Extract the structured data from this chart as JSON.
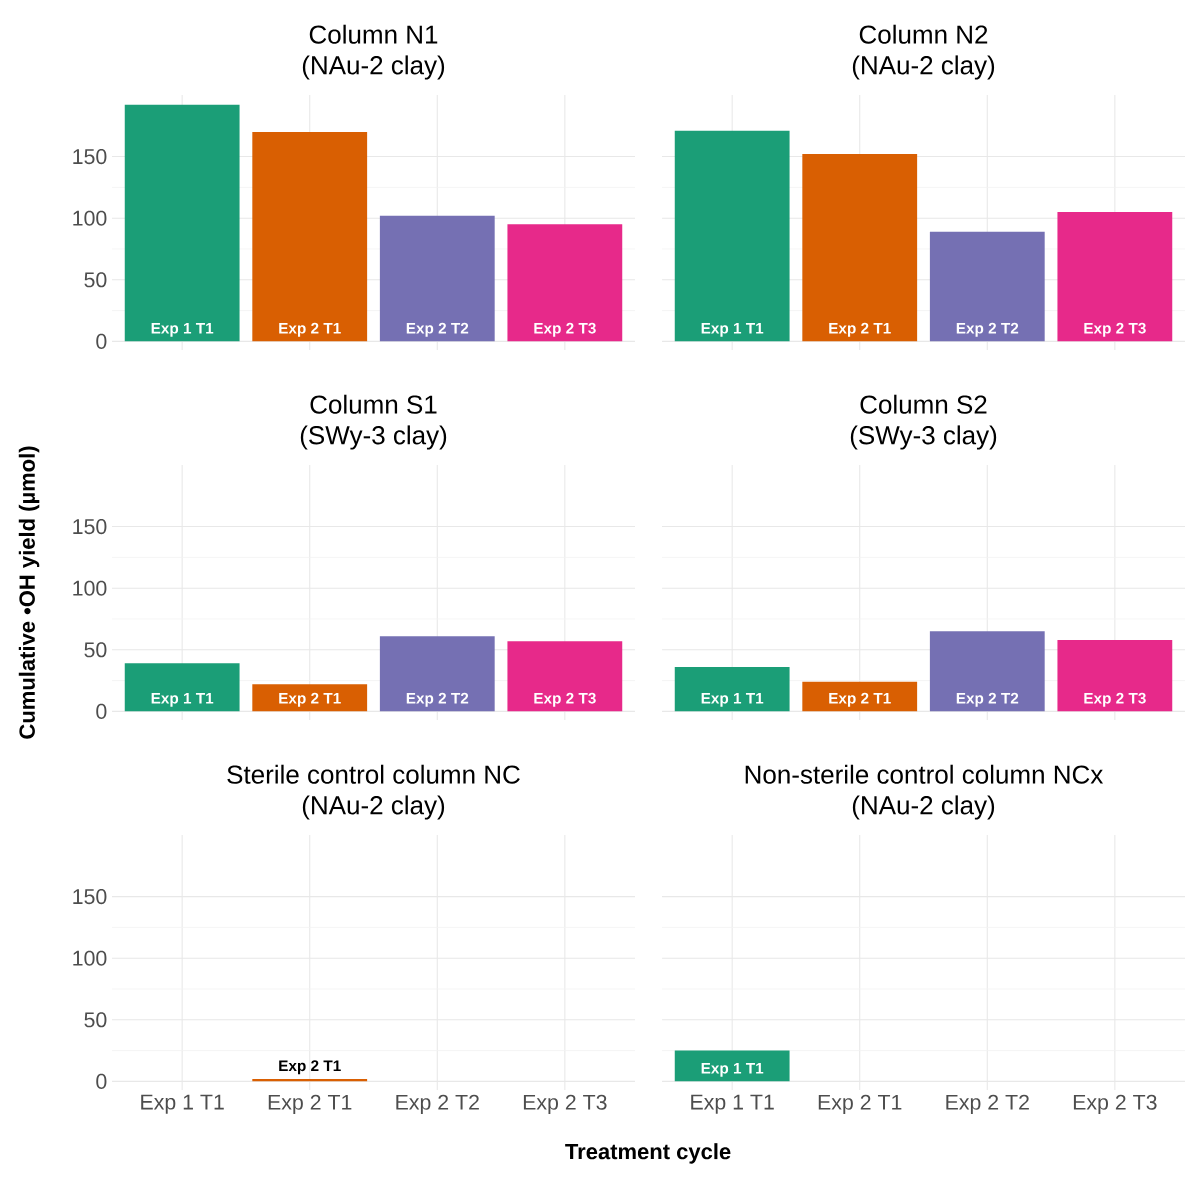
{
  "chart_data": [
    {
      "type": "bar",
      "title": "Column N1",
      "subtitle": "(NAu-2 clay)",
      "categories": [
        "Exp 1 T1",
        "Exp 2 T1",
        "Exp 2 T2",
        "Exp 2 T3"
      ],
      "values": [
        192,
        170,
        102,
        95
      ],
      "colors": [
        "#1b9e77",
        "#d95f02",
        "#7570b3",
        "#e7298a"
      ],
      "ylim": [
        -7,
        200
      ],
      "yticks": [
        0,
        50,
        100,
        150
      ],
      "grid": true,
      "tick_labels": "y"
    },
    {
      "type": "bar",
      "title": "Column N2",
      "subtitle": "(NAu-2 clay)",
      "categories": [
        "Exp 1 T1",
        "Exp 2 T1",
        "Exp 2 T2",
        "Exp 2 T3"
      ],
      "values": [
        171,
        152,
        89,
        105
      ],
      "colors": [
        "#1b9e77",
        "#d95f02",
        "#7570b3",
        "#e7298a"
      ],
      "ylim": [
        -7,
        200
      ],
      "yticks": [
        0,
        50,
        100,
        150
      ],
      "grid": true,
      "tick_labels": false
    },
    {
      "type": "bar",
      "title": "Column S1",
      "subtitle": "(SWy-3 clay)",
      "ylabel": "Cumulative •OH yield (µmol)",
      "categories": [
        "Exp 1 T1",
        "Exp 2 T1",
        "Exp 2 T2",
        "Exp 2 T3"
      ],
      "values": [
        39,
        22,
        61,
        57
      ],
      "colors": [
        "#1b9e77",
        "#d95f02",
        "#7570b3",
        "#e7298a"
      ],
      "ylim": [
        -7,
        200
      ],
      "yticks": [
        0,
        50,
        100,
        150
      ],
      "grid": true,
      "tick_labels": "y"
    },
    {
      "type": "bar",
      "title": "Column S2",
      "subtitle": "(SWy-3 clay)",
      "categories": [
        "Exp 1 T1",
        "Exp 2 T1",
        "Exp 2 T2",
        "Exp 2 T3"
      ],
      "values": [
        36,
        24,
        65,
        58
      ],
      "colors": [
        "#1b9e77",
        "#d95f02",
        "#7570b3",
        "#e7298a"
      ],
      "ylim": [
        -7,
        200
      ],
      "yticks": [
        0,
        50,
        100,
        150
      ],
      "grid": true,
      "tick_labels": false
    },
    {
      "type": "bar",
      "title": "Sterile control column NC",
      "subtitle": "(NAu-2 clay)",
      "xlabel": "Treatment cycle",
      "categories": [
        "Exp 1 T1",
        "Exp 2 T1",
        "Exp 2 T2",
        "Exp 2 T3"
      ],
      "values": [
        null,
        2,
        null,
        null
      ],
      "colors": [
        "#1b9e77",
        "#d95f02",
        "#7570b3",
        "#e7298a"
      ],
      "ylim": [
        -7,
        200
      ],
      "yticks": [
        0,
        50,
        100,
        150
      ],
      "grid": true
    },
    {
      "type": "bar",
      "title": "Non-sterile control column NCx",
      "subtitle": "(NAu-2 clay)",
      "categories": [
        "Exp 1 T1",
        "Exp 2 T1",
        "Exp 2 T2",
        "Exp 2 T3"
      ],
      "values": [
        25,
        null,
        null,
        null
      ],
      "colors": [
        "#1b9e77",
        "#d95f02",
        "#7570b3",
        "#e7298a"
      ],
      "ylim": [
        -7,
        200
      ],
      "yticks": [
        0,
        50,
        100,
        150
      ],
      "grid": true,
      "tick_labels": "x"
    }
  ]
}
